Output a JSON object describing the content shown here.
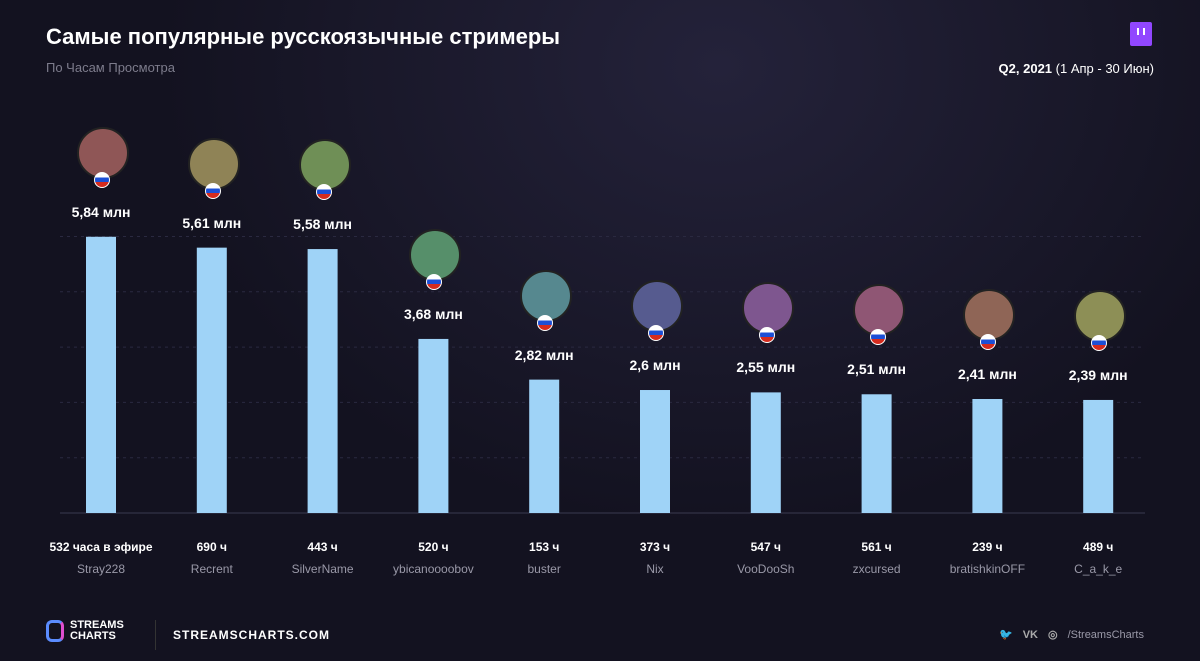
{
  "header": {
    "title": "Самые популярные русскоязычные стримеры",
    "subtitle": "По Часам Просмотра",
    "period_bold": "Q2, 2021",
    "period_rest": " (1 Апр - 30 Июн)"
  },
  "footer": {
    "brand": "STREAMS CHARTS",
    "site": "STREAMSCHARTS.COM",
    "social_handle": "/StreamsCharts",
    "social_icons": [
      "twitter-icon",
      "vk-icon",
      "instagram-icon"
    ],
    "vk": "VK"
  },
  "colors": {
    "bar": "#9fd3f7",
    "background": "#131220",
    "twitch": "#9147ff"
  },
  "chart_data": {
    "type": "bar",
    "categories": [
      "Stray228",
      "Recrent",
      "SilverName",
      "ybicanoooobov",
      "buster",
      "Nix",
      "VooDooSh",
      "zxcursed",
      "bratishkinOFF",
      "C_a_k_e"
    ],
    "values": [
      5.84,
      5.61,
      5.58,
      3.68,
      2.82,
      2.6,
      2.55,
      2.51,
      2.41,
      2.39
    ],
    "value_labels": [
      "5,84 млн",
      "5,61 млн",
      "5,58 млн",
      "3,68 млн",
      "2,82 млн",
      "2,6 млн",
      "2,55 млн",
      "2,51 млн",
      "2,41 млн",
      "2,39 млн"
    ],
    "hours_labels": [
      "532 часа в эфире",
      "690 ч",
      "443 ч",
      "520 ч",
      "153 ч",
      "373 ч",
      "547 ч",
      "561 ч",
      "239 ч",
      "489 ч"
    ],
    "unit": "млн",
    "grid": true,
    "ylim": [
      0,
      6
    ]
  }
}
